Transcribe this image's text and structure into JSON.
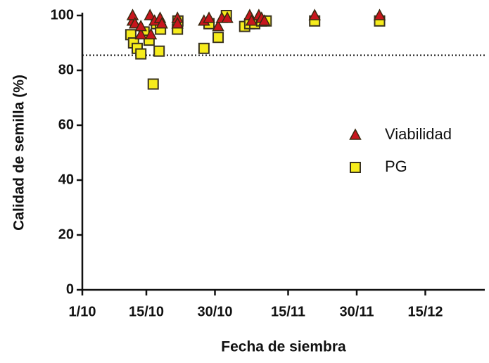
{
  "chart_data": {
    "type": "scatter",
    "xlabel": "Fecha de siembra",
    "ylabel": "Calidad de semilla (%)",
    "xlim": [
      0,
      88
    ],
    "ylim": [
      0,
      100
    ],
    "xticks": [
      {
        "value": 0,
        "label": "1/10"
      },
      {
        "value": 14,
        "label": "15/10"
      },
      {
        "value": 29,
        "label": "30/10"
      },
      {
        "value": 45,
        "label": "15/11"
      },
      {
        "value": 60,
        "label": "30/11"
      },
      {
        "value": 75,
        "label": "15/12"
      }
    ],
    "yticks": [
      0,
      20,
      40,
      60,
      80,
      100
    ],
    "hline": 85.5,
    "legend": "right",
    "series": [
      {
        "name": "Viabilidad",
        "color": "#c8161d",
        "marker": "triangle",
        "x": [
          11,
          11,
          11.5,
          12.8,
          12.8,
          14.8,
          15,
          15.8,
          17,
          17.4,
          20.8,
          20.8,
          26.6,
          27.7,
          29.7,
          30.5,
          31.7,
          36.6,
          37,
          38.6,
          39.2,
          39.8,
          50.8,
          65
        ],
        "values": [
          98,
          100,
          97,
          93,
          96,
          100,
          93,
          98,
          99,
          97,
          99,
          97,
          98,
          99,
          96,
          99,
          99,
          100,
          98,
          100,
          99,
          98,
          100,
          100
        ]
      },
      {
        "name": "PG",
        "color": "#f6ec1c",
        "marker": "square",
        "x": [
          10.6,
          11.2,
          12,
          12.8,
          13.5,
          14.6,
          15.5,
          16.2,
          16.8,
          17.1,
          20.8,
          20.9,
          26.6,
          27.7,
          29.7,
          31.5,
          35.5,
          36.6,
          37.7,
          39.2,
          40.2,
          50.8,
          65
        ],
        "values": [
          93,
          90,
          88,
          86,
          94,
          91,
          75,
          97,
          87,
          95,
          95,
          98,
          88,
          97,
          92,
          100,
          96,
          97,
          97,
          98,
          98,
          98,
          98
        ]
      }
    ]
  }
}
